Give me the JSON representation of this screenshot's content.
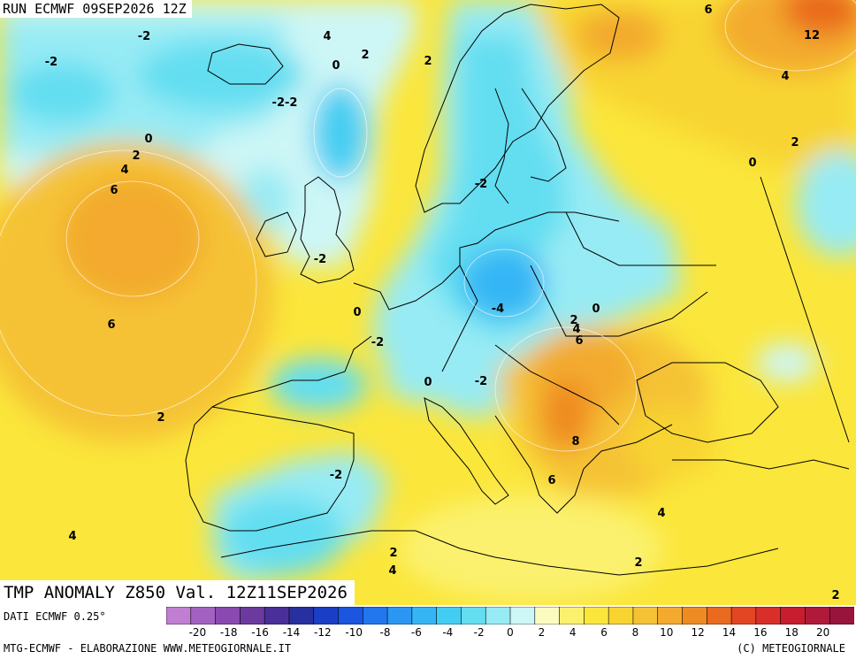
{
  "header": {
    "run_title": "RUN ECMWF 09SEP2026 12Z"
  },
  "map": {
    "field_title": "TMP ANOMALY Z850 Val. 12Z11SEP2026",
    "contour_labels": [
      "-2",
      "4",
      "0",
      "2",
      "2",
      "-2",
      "-2-2",
      "6",
      "0",
      "2",
      "4",
      "6",
      "12",
      "4",
      "2",
      "0",
      "-2",
      "-2",
      "0",
      "-4",
      "0",
      "2",
      "4",
      "6",
      "-2",
      "6",
      "0",
      "-2",
      "2",
      "8",
      "-2",
      "6",
      "4",
      "4",
      "2",
      "4",
      "2",
      "2"
    ]
  },
  "colors": {
    "land_outline": "#000000",
    "scale": [
      "#c07fd2",
      "#a362c2",
      "#8a49b0",
      "#6c3a9e",
      "#4a2f9a",
      "#27309e",
      "#1a3fc6",
      "#1b55e0",
      "#2276ee",
      "#2b97f3",
      "#36b5f5",
      "#44cdf2",
      "#63def1",
      "#97ebf4",
      "#cdf6f6",
      "#fbfbc0",
      "#fbf16e",
      "#fbe63b",
      "#f8d431",
      "#f5c236",
      "#f3aa2f",
      "#ef8b23",
      "#ea6a1f",
      "#e24622",
      "#d92f2a",
      "#c81d2f",
      "#b01a3a",
      "#98143c"
    ]
  },
  "footer": {
    "data_source": "DATI ECMWF 0.25°",
    "credit": "MTG-ECMWF - ELABORAZIONE WWW.METEOGIORNALE.IT",
    "copyright": "(C) METEOGIORNALE",
    "scale_ticks": [
      "-20",
      "-18",
      "-16",
      "-14",
      "-12",
      "-10",
      "-8",
      "-6",
      "-4",
      "-2",
      "0",
      "2",
      "4",
      "6",
      "8",
      "10",
      "12",
      "14",
      "16",
      "18",
      "20"
    ]
  }
}
